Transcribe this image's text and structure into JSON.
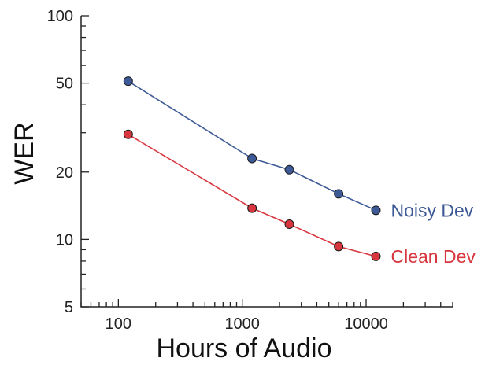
{
  "chart_data": {
    "type": "line",
    "title": "",
    "xlabel": "Hours of Audio",
    "ylabel": "WER",
    "x_scale": "log",
    "y_scale": "log",
    "xlim": [
      50,
      50000
    ],
    "ylim": [
      5,
      100
    ],
    "x_ticks": [
      100,
      1000,
      10000
    ],
    "x_tick_labels": [
      "100",
      "1000",
      "10000"
    ],
    "y_ticks": [
      5,
      10,
      20,
      50,
      100
    ],
    "y_tick_labels": [
      "5",
      "10",
      "20",
      "50",
      "100"
    ],
    "grid": false,
    "series": [
      {
        "name": "Noisy Dev",
        "color": "#3d5a96",
        "x": [
          120,
          1200,
          2400,
          6000,
          12000
        ],
        "y": [
          51,
          23,
          20.5,
          16,
          13.5
        ]
      },
      {
        "name": "Clean Dev",
        "color": "#d7363f",
        "x": [
          120,
          1200,
          2400,
          6000,
          12000
        ],
        "y": [
          29.5,
          13.8,
          11.7,
          9.3,
          8.4
        ]
      }
    ]
  }
}
